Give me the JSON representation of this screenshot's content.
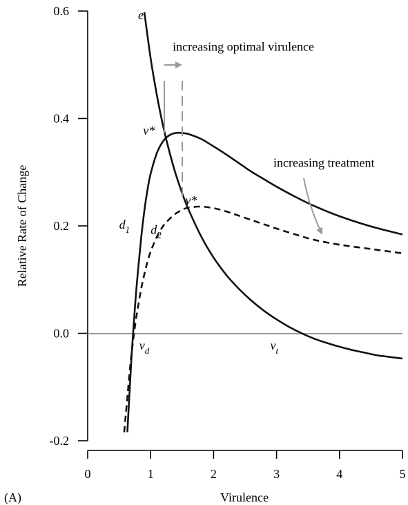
{
  "chart_data": {
    "type": "line",
    "xlabel": "Virulence",
    "ylabel": "Relative Rate of Change",
    "panel_label": "(A)",
    "xlim": [
      0,
      5
    ],
    "ylim": [
      -0.2,
      0.6
    ],
    "xticks": [
      "0",
      "1",
      "2",
      "3",
      "4",
      "5"
    ],
    "yticks": [
      "-0.2",
      "0.0",
      "0.2",
      "0.4",
      "0.6"
    ],
    "colors": {
      "curve": "#111111",
      "annotation": "#999999",
      "baseline": "#999999"
    },
    "series": [
      {
        "name": "e",
        "style": "solid",
        "x": [
          0.9,
          1.0,
          1.1,
          1.2,
          1.3,
          1.4,
          1.5,
          1.6,
          1.8,
          2.0,
          2.2,
          2.4,
          2.6,
          2.8,
          3.0,
          3.2,
          3.4,
          3.6,
          3.8,
          4.0,
          4.2,
          4.4,
          4.6,
          4.8,
          5.0
        ],
        "y": [
          0.598,
          0.512,
          0.443,
          0.385,
          0.337,
          0.296,
          0.261,
          0.231,
          0.181,
          0.141,
          0.109,
          0.083,
          0.061,
          0.042,
          0.026,
          0.012,
          0.0,
          -0.01,
          -0.018,
          -0.025,
          -0.031,
          -0.036,
          -0.041,
          -0.044,
          -0.047
        ]
      },
      {
        "name": "d1",
        "style": "solid",
        "x": [
          0.63,
          0.66,
          0.7,
          0.75,
          0.8,
          0.85,
          0.9,
          0.95,
          1.0,
          1.1,
          1.2,
          1.3,
          1.4,
          1.5,
          1.6,
          1.8,
          2.0,
          2.2,
          2.4,
          2.6,
          2.8,
          3.0,
          3.3,
          3.6,
          4.0,
          4.5,
          5.0
        ],
        "y": [
          -0.184,
          -0.12,
          -0.038,
          0.047,
          0.118,
          0.178,
          0.228,
          0.267,
          0.297,
          0.336,
          0.358,
          0.369,
          0.373,
          0.373,
          0.371,
          0.362,
          0.348,
          0.333,
          0.317,
          0.301,
          0.287,
          0.273,
          0.254,
          0.237,
          0.218,
          0.199,
          0.184
        ]
      },
      {
        "name": "d2",
        "style": "dashed",
        "x": [
          0.58,
          0.62,
          0.66,
          0.7,
          0.75,
          0.8,
          0.85,
          0.9,
          0.95,
          1.0,
          1.1,
          1.2,
          1.3,
          1.4,
          1.5,
          1.6,
          1.8,
          2.0,
          2.2,
          2.4,
          2.6,
          2.8,
          3.0,
          3.3,
          3.6,
          4.0,
          4.5,
          5.0
        ],
        "y": [
          -0.184,
          -0.133,
          -0.08,
          -0.035,
          0.012,
          0.05,
          0.083,
          0.11,
          0.133,
          0.152,
          0.18,
          0.2,
          0.213,
          0.223,
          0.23,
          0.234,
          0.236,
          0.233,
          0.227,
          0.219,
          0.211,
          0.203,
          0.195,
          0.184,
          0.174,
          0.165,
          0.157,
          0.149
        ]
      }
    ],
    "annotations": [
      {
        "id": "e",
        "text": "e",
        "x": 0.8,
        "y": 0.585
      },
      {
        "id": "d1",
        "text": "d",
        "sub": "1",
        "x": 0.5,
        "y": 0.195
      },
      {
        "id": "d2",
        "text": "d",
        "sub": "2",
        "x": 1.0,
        "y": 0.185
      },
      {
        "id": "vstar1",
        "text": "v*",
        "x": 0.88,
        "y": 0.37
      },
      {
        "id": "vstar2",
        "text": "v*",
        "x": 1.55,
        "y": 0.24
      },
      {
        "id": "vd",
        "text": "v",
        "sub": "d",
        "x": 0.82,
        "y": -0.03
      },
      {
        "id": "vt",
        "text": "v",
        "sub": "t",
        "x": 2.9,
        "y": -0.03
      },
      {
        "id": "opt",
        "text": "increasing optimal virulence",
        "x": 1.35,
        "y": 0.526
      },
      {
        "id": "treat",
        "text": "increasing treatment",
        "x": 2.95,
        "y": 0.31
      }
    ]
  }
}
